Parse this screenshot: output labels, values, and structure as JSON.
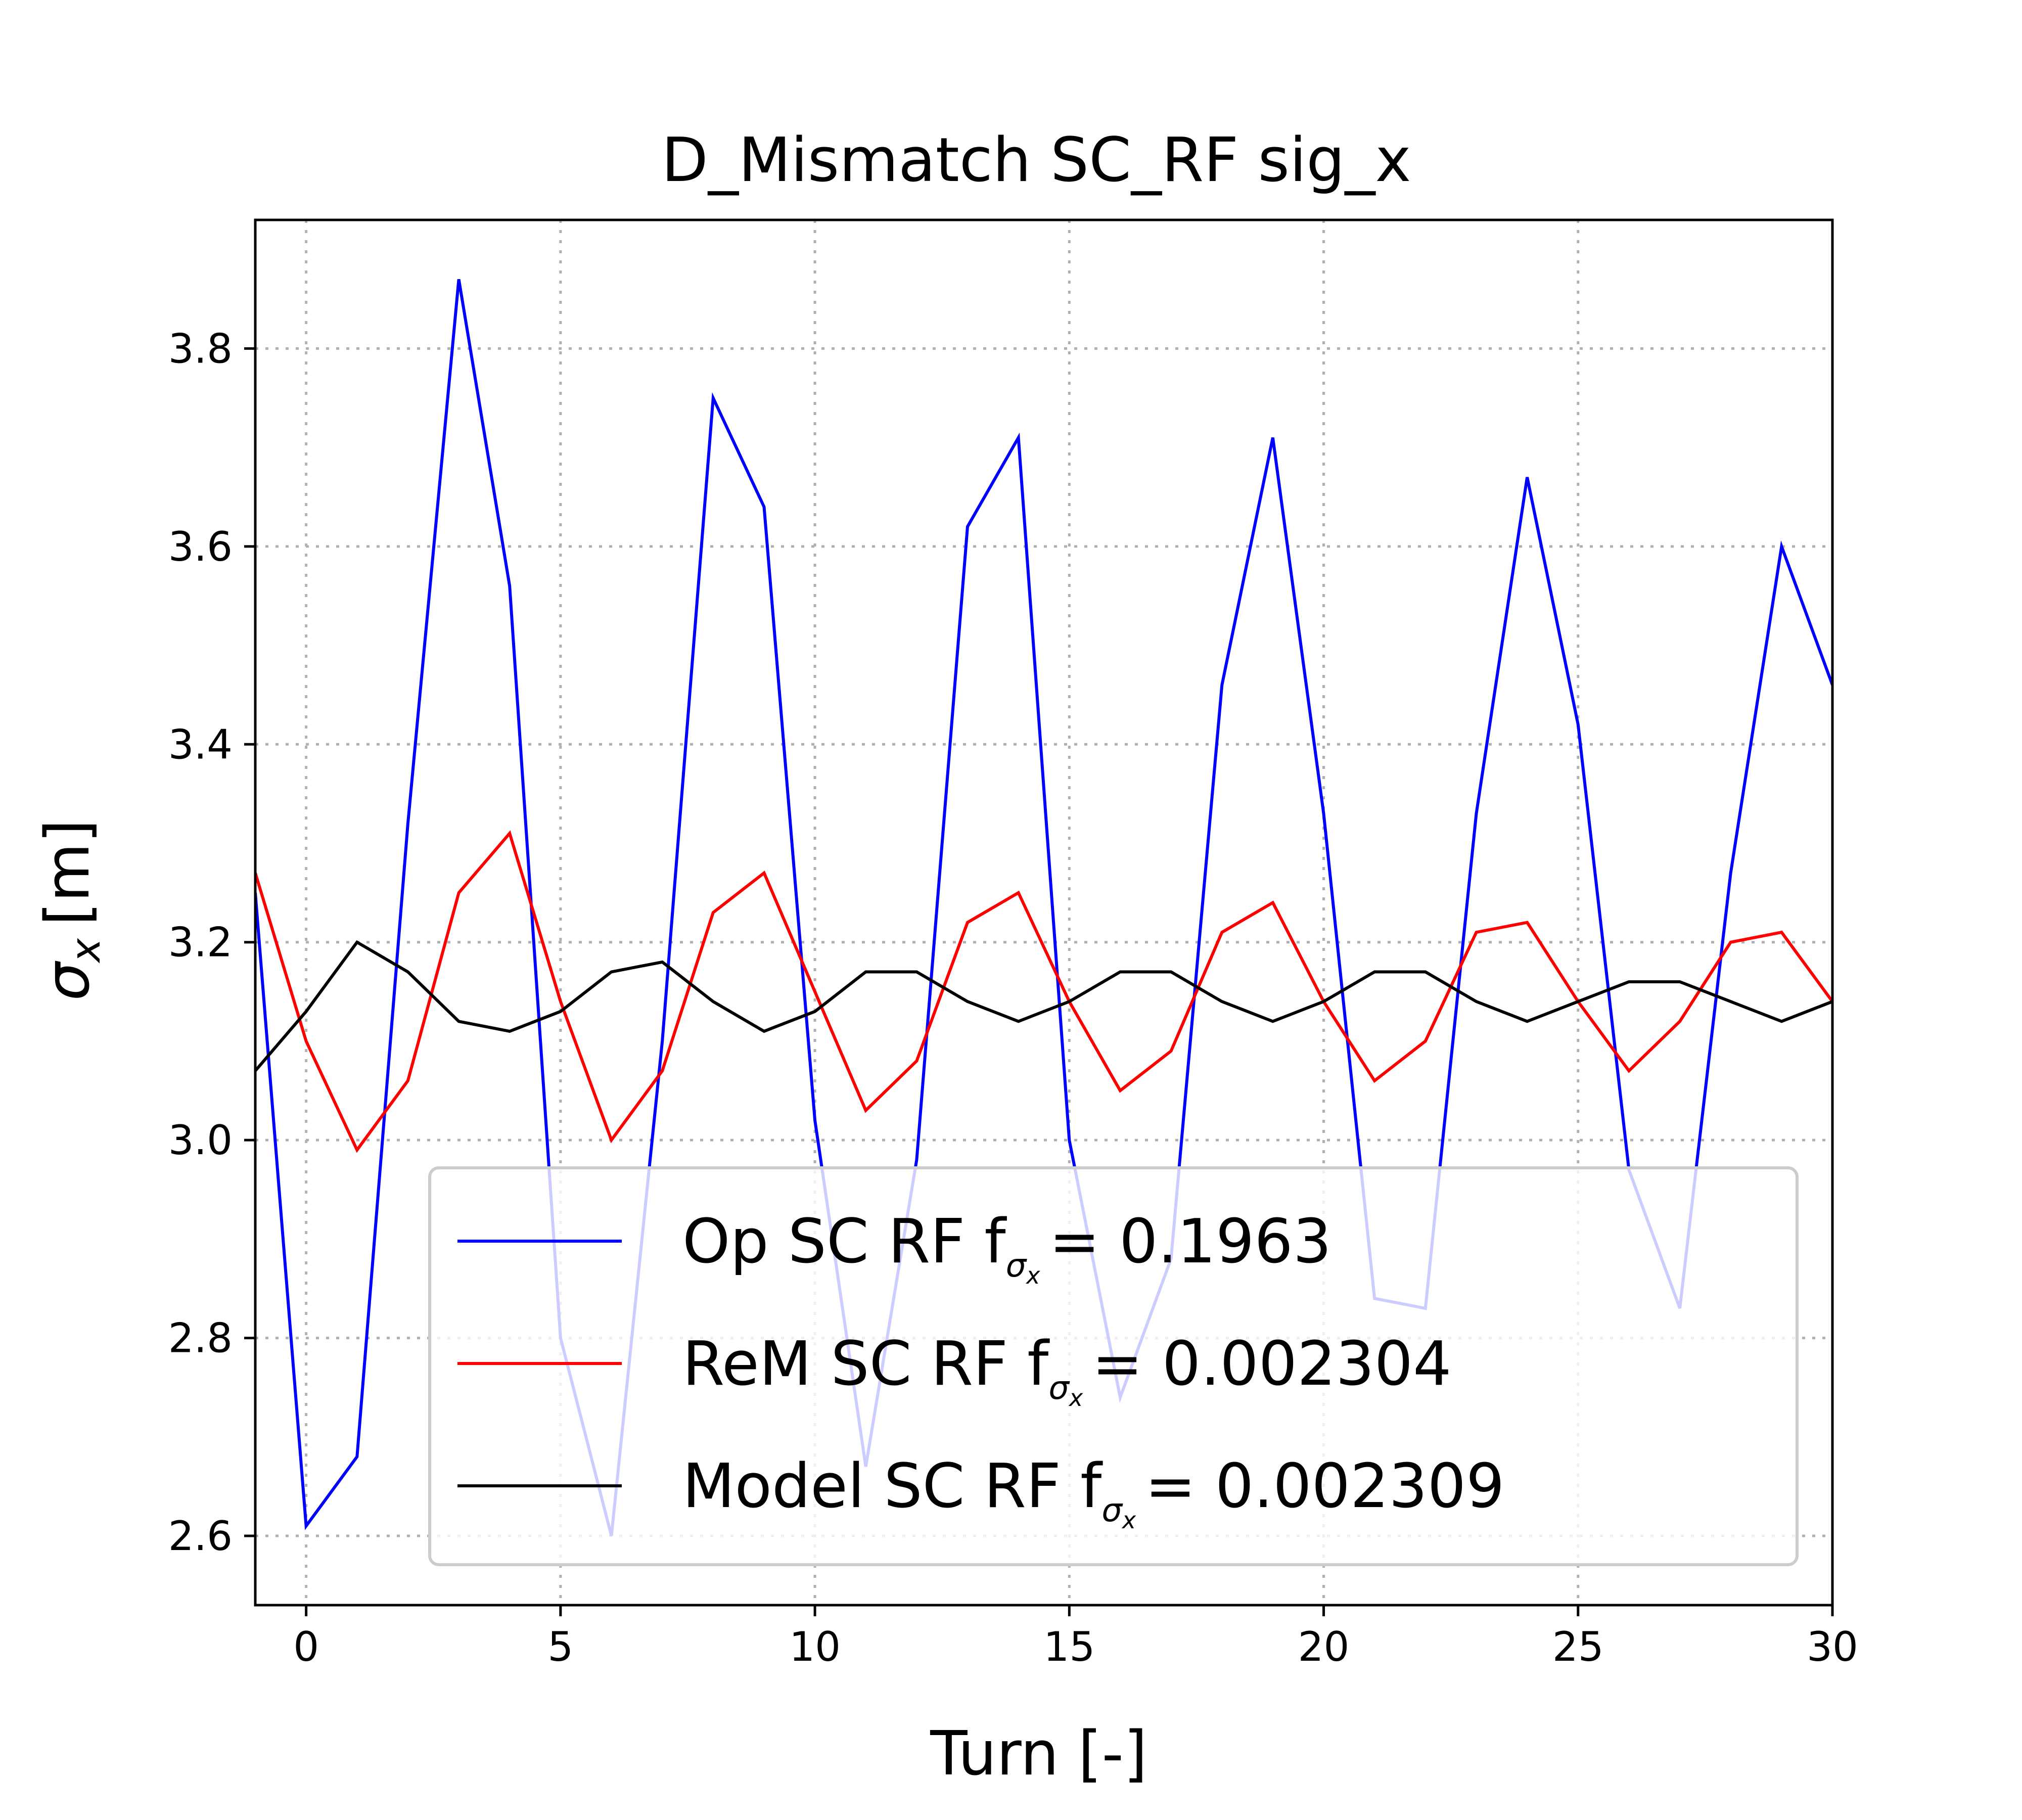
{
  "chart_data": {
    "type": "line",
    "title": "D_Mismatch SC_RF sig_x",
    "xlabel": "Turn [-]",
    "ylabel_symbol": "σ",
    "ylabel_sub": "x",
    "ylabel_unit": "[m]",
    "xlim": [
      -1,
      30
    ],
    "ylim": [
      2.53,
      3.93
    ],
    "xticks": [
      0,
      5,
      10,
      15,
      20,
      25,
      30
    ],
    "yticks": [
      2.6,
      2.8,
      3.0,
      3.2,
      3.4,
      3.6,
      3.8
    ],
    "ytick_labels": [
      "2.6",
      "2.8",
      "3.0",
      "3.2",
      "3.4",
      "3.6",
      "3.8"
    ],
    "grid": true,
    "legend_position": "lower-right",
    "x": [
      -1,
      0,
      1,
      2,
      3,
      4,
      5,
      6,
      7,
      8,
      9,
      10,
      11,
      12,
      13,
      14,
      15,
      16,
      17,
      18,
      19,
      20,
      21,
      22,
      23,
      24,
      25,
      26,
      27,
      28,
      29,
      30
    ],
    "series": [
      {
        "name": "Op SC RF f",
        "value_text": "= 0.1963",
        "color": "#0000ff",
        "values": [
          3.25,
          2.61,
          2.68,
          3.32,
          3.87,
          3.56,
          2.8,
          2.6,
          3.1,
          3.75,
          3.64,
          3.02,
          2.67,
          2.98,
          3.62,
          3.71,
          3.0,
          2.74,
          2.88,
          3.46,
          3.71,
          3.33,
          2.84,
          2.83,
          3.33,
          3.67,
          3.42,
          2.97,
          2.83,
          3.27,
          3.6,
          3.46
        ]
      },
      {
        "name": "ReM SC RF f",
        "value_text": "= 0.002304",
        "color": "#ff0000",
        "values": [
          3.27,
          3.1,
          2.99,
          3.06,
          3.25,
          3.31,
          3.14,
          3.0,
          3.07,
          3.23,
          3.27,
          3.15,
          3.03,
          3.08,
          3.22,
          3.25,
          3.14,
          3.05,
          3.09,
          3.21,
          3.24,
          3.14,
          3.06,
          3.1,
          3.21,
          3.22,
          3.14,
          3.07,
          3.12,
          3.2,
          3.21,
          3.14
        ]
      },
      {
        "name": "Model SC RF f",
        "value_text": "= 0.002309",
        "color": "#000000",
        "values": [
          3.07,
          3.13,
          3.2,
          3.17,
          3.12,
          3.11,
          3.13,
          3.17,
          3.18,
          3.14,
          3.11,
          3.13,
          3.17,
          3.17,
          3.14,
          3.12,
          3.14,
          3.17,
          3.17,
          3.14,
          3.12,
          3.14,
          3.17,
          3.17,
          3.14,
          3.12,
          3.14,
          3.16,
          3.16,
          3.14,
          3.12,
          3.14
        ]
      }
    ]
  }
}
